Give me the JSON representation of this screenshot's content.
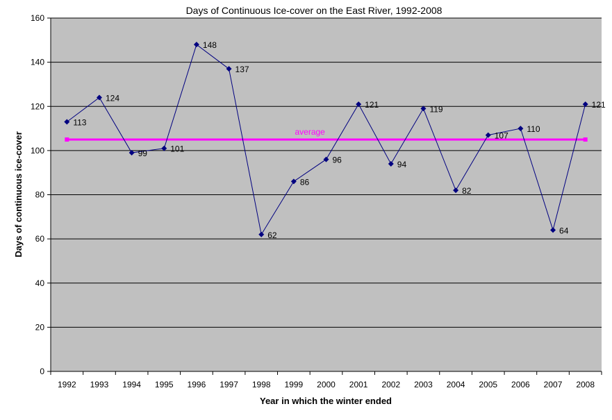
{
  "chart_data": {
    "type": "line",
    "title": "Days of Continuous Ice-cover on the East River, 1992-2008",
    "xlabel": "Year in which the winter ended",
    "ylabel": "Days of continuous ice-cover",
    "categories": [
      "1992",
      "1993",
      "1994",
      "1995",
      "1996",
      "1997",
      "1998",
      "1999",
      "2000",
      "2001",
      "2002",
      "2003",
      "2004",
      "2005",
      "2006",
      "2007",
      "2008"
    ],
    "series": [
      {
        "values": [
          113,
          124,
          99,
          101,
          148,
          137,
          62,
          86,
          96,
          121,
          94,
          119,
          82,
          107,
          110,
          64,
          121
        ],
        "color": "#000080",
        "data_labels": true
      }
    ],
    "reference_line": {
      "label": "average",
      "value": 105,
      "color": "#ff00ff"
    },
    "ylim": [
      0,
      160
    ],
    "yticks": [
      0,
      20,
      40,
      60,
      80,
      100,
      120,
      140,
      160
    ],
    "grid": true,
    "legend": "none",
    "plot_background": "#c0c0c0"
  }
}
